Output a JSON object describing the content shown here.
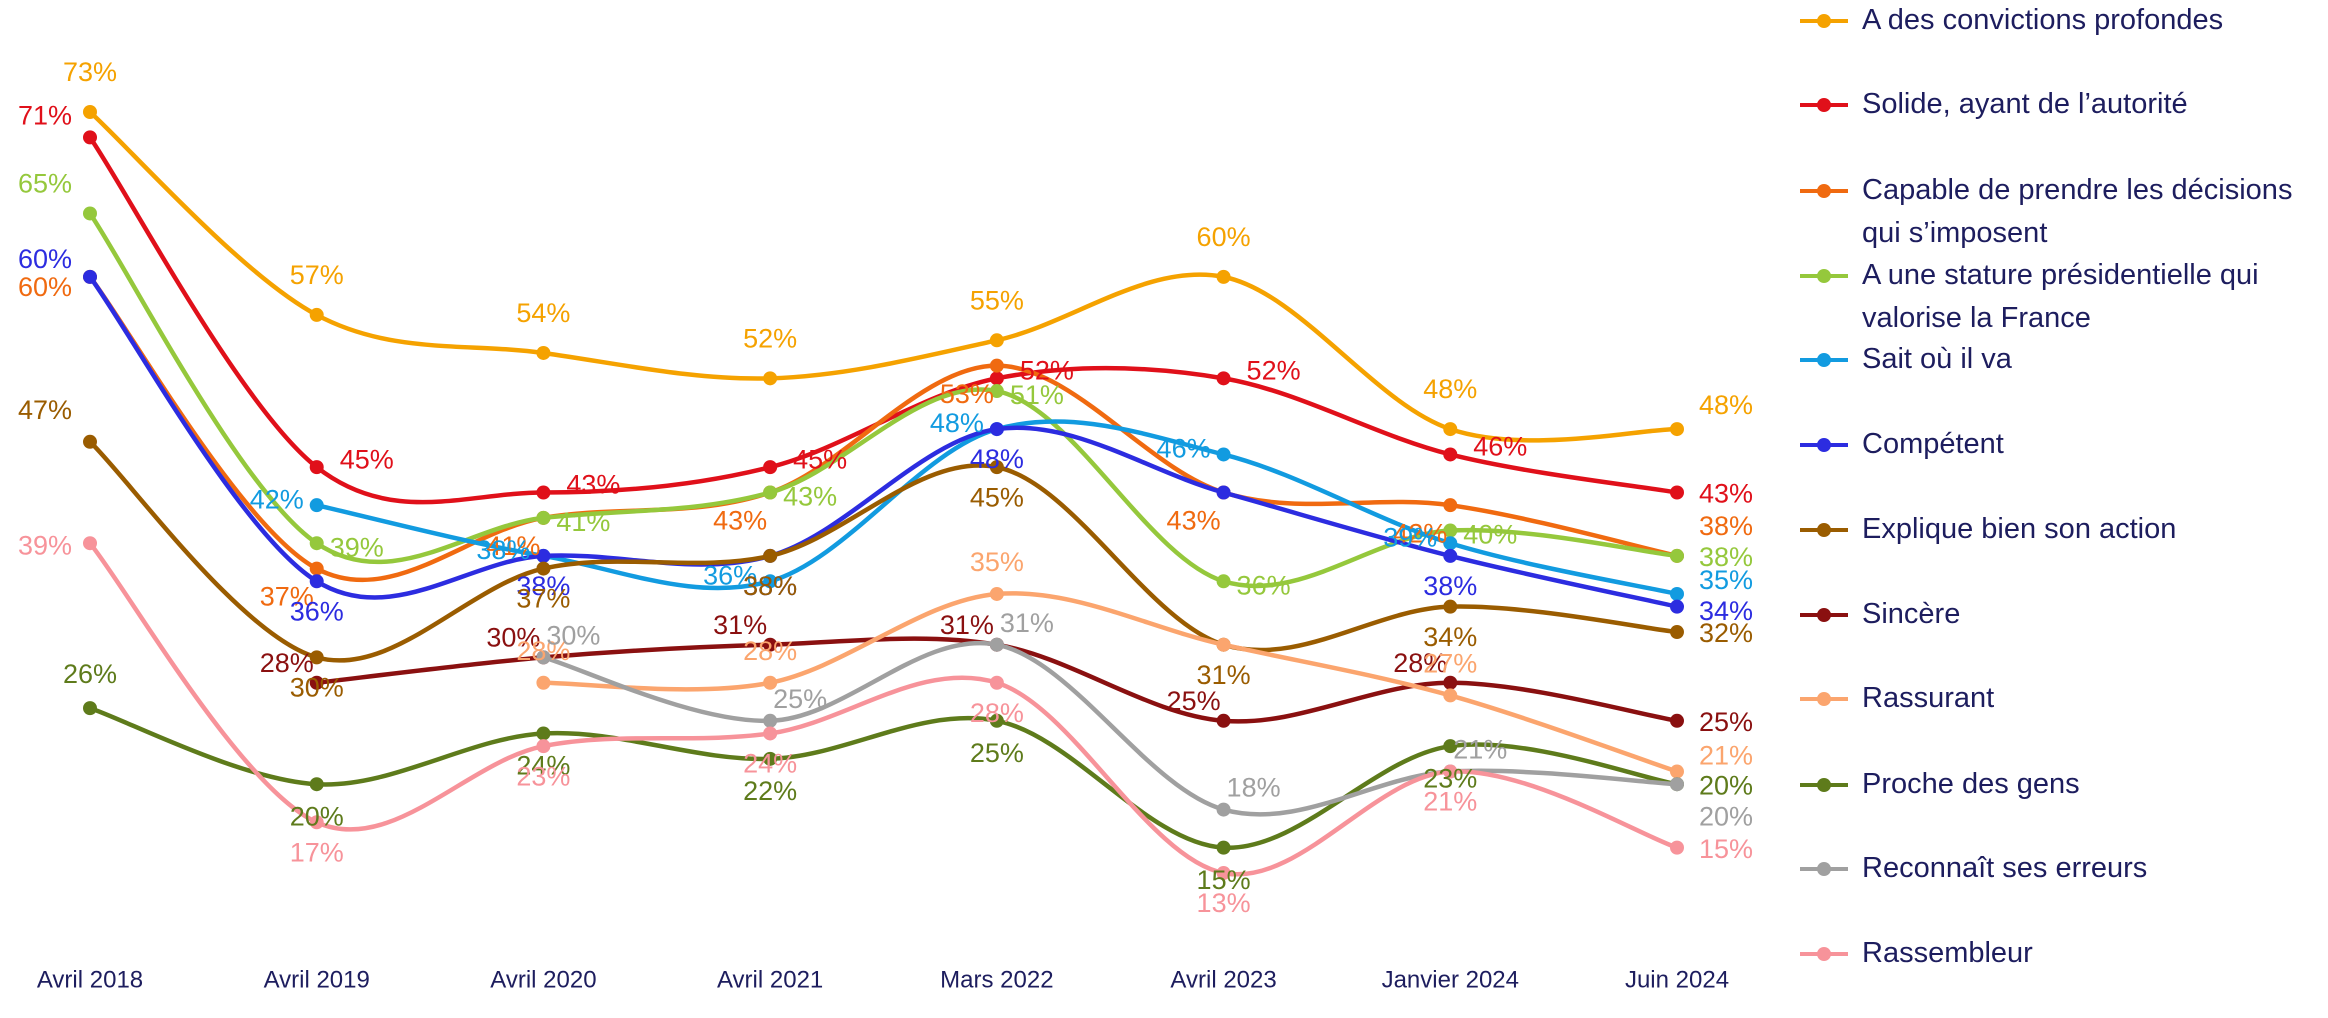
{
  "chart_data": {
    "type": "line",
    "categories": [
      "Avril 2018",
      "Avril 2019",
      "Avril 2020",
      "Avril 2021",
      "Mars 2022",
      "Avril 2023",
      "Janvier 2024",
      "Juin 2024"
    ],
    "series": [
      {
        "name": "A des convictions profondes",
        "color": "#f5a200",
        "values": [
          73,
          57,
          54,
          52,
          55,
          60,
          48,
          48
        ],
        "value_labels": [
          "73%",
          "57%",
          "54%",
          "52%",
          "55%",
          "60%",
          "48%",
          "48%"
        ]
      },
      {
        "name": "Solide, ayant de l’autorité",
        "color": "#e0101a",
        "values": [
          71,
          45,
          43,
          45,
          52,
          52,
          46,
          43
        ],
        "value_labels": [
          "71%",
          "45%",
          "43%",
          "45%",
          "52%",
          "52%",
          "46%",
          "43%"
        ]
      },
      {
        "name": "Capable de prendre les décisions qui s’imposent",
        "color": "#f06a10",
        "values": [
          60,
          37,
          41,
          43,
          53,
          43,
          42,
          38
        ],
        "value_labels": [
          "60%",
          "37%",
          "41%",
          "43%",
          "53%",
          "43%",
          "42%",
          "38%"
        ]
      },
      {
        "name": "A une stature présidentielle qui valorise la France",
        "color": "#95c83c",
        "values": [
          65,
          39,
          41,
          43,
          51,
          36,
          40,
          38
        ],
        "value_labels": [
          "65%",
          "39%",
          "41%",
          "43%",
          "51%",
          "36%",
          "40%",
          "38%"
        ]
      },
      {
        "name": "Sait où il va",
        "color": "#129be0",
        "values": [
          null,
          42,
          38,
          36,
          48,
          46,
          39,
          35
        ],
        "value_labels": [
          null,
          "42%",
          "38%",
          "36%",
          "48%",
          "46%",
          "39%",
          "35%"
        ]
      },
      {
        "name": "Compétent",
        "color": "#2c2ce0",
        "values": [
          60,
          36,
          38,
          38,
          48,
          43,
          38,
          34
        ],
        "value_labels": [
          "60%",
          "36%",
          "38%",
          "38%",
          "48%",
          null,
          "38%",
          "34%"
        ]
      },
      {
        "name": "Explique bien son action",
        "color": "#9a5c00",
        "values": [
          47,
          30,
          37,
          38,
          45,
          31,
          34,
          32
        ],
        "value_labels": [
          "47%",
          "30%",
          "37%",
          "38%",
          "45%",
          "31%",
          "34%",
          "32%"
        ]
      },
      {
        "name": "Sincère",
        "color": "#8a1010",
        "values": [
          null,
          28,
          30,
          31,
          31,
          25,
          28,
          25
        ],
        "value_labels": [
          null,
          "28%",
          "30%",
          "31%",
          "31%",
          "25%",
          "28%",
          "25%"
        ]
      },
      {
        "name": "Rassurant",
        "color": "#fba56e",
        "values": [
          null,
          null,
          28,
          28,
          35,
          31,
          27,
          21
        ],
        "value_labels": [
          null,
          null,
          "28%",
          "28%",
          "35%",
          null,
          "27%",
          "21%"
        ]
      },
      {
        "name": "Proche des gens",
        "color": "#5e7b1b",
        "values": [
          26,
          20,
          24,
          22,
          25,
          15,
          23,
          20
        ],
        "value_labels": [
          "26%",
          "20%",
          "24%",
          "22%",
          "25%",
          "15%",
          "23%",
          "20%"
        ]
      },
      {
        "name": "Reconnaît ses erreurs",
        "color": "#a0a0a0",
        "values": [
          null,
          null,
          30,
          25,
          31,
          18,
          21,
          20
        ],
        "value_labels": [
          null,
          null,
          "30%",
          "25%",
          "31%",
          "18%",
          "21%",
          "20%"
        ]
      },
      {
        "name": "Rassembleur",
        "color": "#f7939a",
        "values": [
          39,
          17,
          23,
          24,
          28,
          13,
          21,
          15
        ],
        "value_labels": [
          "39%",
          "17%",
          "23%",
          "24%",
          "28%",
          "13%",
          "21%",
          "15%"
        ]
      }
    ],
    "legend": "right"
  }
}
